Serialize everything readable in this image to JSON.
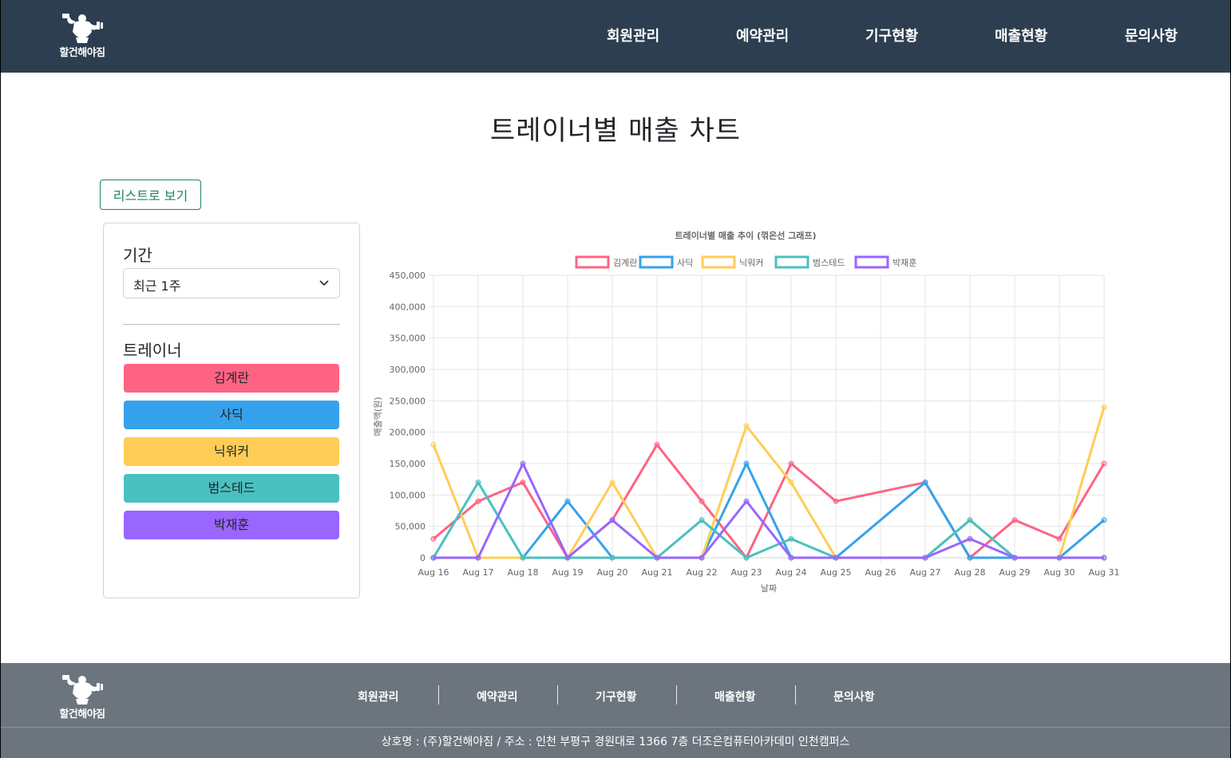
{
  "header": {
    "logo_text": "할건해야짐",
    "nav": [
      "회원관리",
      "예약관리",
      "기구현황",
      "매출현황",
      "문의사항"
    ]
  },
  "page_title": "트레이너별 매출 차트",
  "list_button_label": "리스트로 보기",
  "filter": {
    "period_label": "기간",
    "period_value": "최근 1주",
    "trainer_label": "트레이너"
  },
  "trainers": [
    {
      "name": "김계란",
      "color": "#ff6384"
    },
    {
      "name": "사딕",
      "color": "#36a2eb"
    },
    {
      "name": "닉워커",
      "color": "#ffcd56"
    },
    {
      "name": "범스테드",
      "color": "#4bc0c0"
    },
    {
      "name": "박재훈",
      "color": "#9966ff"
    }
  ],
  "chart_data": {
    "type": "line",
    "title": "트레이너별 매출 추이 (꺾은선 그래프)",
    "xlabel": "날짜",
    "ylabel": "매출액(원)",
    "ylim": [
      0,
      450000
    ],
    "yticks": [
      0,
      50000,
      100000,
      150000,
      200000,
      250000,
      300000,
      350000,
      400000,
      450000
    ],
    "ytick_labels": [
      "0",
      "50,000",
      "100,000",
      "150,000",
      "200,000",
      "250,000",
      "300,000",
      "350,000",
      "400,000",
      "450,000"
    ],
    "legend_position": "top",
    "grid": true,
    "x": [
      "Aug 16",
      "Aug 17",
      "Aug 18",
      "Aug 19",
      "Aug 20",
      "Aug 21",
      "Aug 22",
      "Aug 23",
      "Aug 24",
      "Aug 25",
      "Aug 26",
      "Aug 27",
      "Aug 28",
      "Aug 29",
      "Aug 30",
      "Aug 31"
    ],
    "series": [
      {
        "name": "김계란",
        "color": "#ff6384",
        "points": [
          [
            0,
            30000
          ],
          [
            1,
            90000
          ],
          [
            2,
            120000
          ],
          [
            3,
            0
          ],
          [
            4,
            60000
          ],
          [
            5,
            180000
          ],
          [
            6,
            90000
          ],
          [
            7,
            0
          ],
          [
            8,
            150000
          ],
          [
            9,
            90000
          ],
          [
            11,
            120000
          ],
          [
            12,
            0
          ],
          [
            13,
            60000
          ],
          [
            14,
            30000
          ],
          [
            15,
            150000
          ]
        ]
      },
      {
        "name": "사딕",
        "color": "#36a2eb",
        "points": [
          [
            0,
            0
          ],
          [
            1,
            0
          ],
          [
            2,
            0
          ],
          [
            3,
            90000
          ],
          [
            4,
            0
          ],
          [
            5,
            0
          ],
          [
            6,
            0
          ],
          [
            7,
            150000
          ],
          [
            8,
            0
          ],
          [
            9,
            0
          ],
          [
            11,
            120000
          ],
          [
            12,
            0
          ],
          [
            13,
            0
          ],
          [
            14,
            0
          ],
          [
            15,
            60000
          ]
        ]
      },
      {
        "name": "닉워커",
        "color": "#ffcd56",
        "points": [
          [
            0,
            180000
          ],
          [
            1,
            0
          ],
          [
            2,
            0
          ],
          [
            3,
            0
          ],
          [
            4,
            120000
          ],
          [
            5,
            0
          ],
          [
            6,
            0
          ],
          [
            7,
            210000
          ],
          [
            8,
            120000
          ],
          [
            9,
            0
          ],
          [
            11,
            0
          ],
          [
            12,
            60000
          ],
          [
            13,
            0
          ],
          [
            14,
            0
          ],
          [
            15,
            240000
          ]
        ]
      },
      {
        "name": "범스테드",
        "color": "#4bc0c0",
        "points": [
          [
            0,
            0
          ],
          [
            1,
            120000
          ],
          [
            2,
            0
          ],
          [
            3,
            0
          ],
          [
            4,
            0
          ],
          [
            5,
            0
          ],
          [
            6,
            60000
          ],
          [
            7,
            0
          ],
          [
            8,
            30000
          ],
          [
            9,
            0
          ],
          [
            11,
            0
          ],
          [
            12,
            60000
          ],
          [
            13,
            0
          ],
          [
            14,
            0
          ],
          [
            15,
            0
          ]
        ]
      },
      {
        "name": "박재훈",
        "color": "#9966ff",
        "points": [
          [
            0,
            0
          ],
          [
            1,
            0
          ],
          [
            2,
            150000
          ],
          [
            3,
            0
          ],
          [
            4,
            60000
          ],
          [
            5,
            0
          ],
          [
            6,
            0
          ],
          [
            7,
            90000
          ],
          [
            8,
            0
          ],
          [
            9,
            0
          ],
          [
            11,
            0
          ],
          [
            12,
            30000
          ],
          [
            13,
            0
          ],
          [
            14,
            0
          ],
          [
            15,
            0
          ]
        ]
      }
    ]
  },
  "footer": {
    "logo_text": "할건해야짐",
    "nav": [
      "회원관리",
      "예약관리",
      "기구현황",
      "매출현황",
      "문의사항"
    ],
    "info": "상호명 : (주)할건해야짐 / 주소 : 인천 부평구 경원대로 1366 7층 더조은컴퓨터아카데미 인천캠퍼스"
  }
}
